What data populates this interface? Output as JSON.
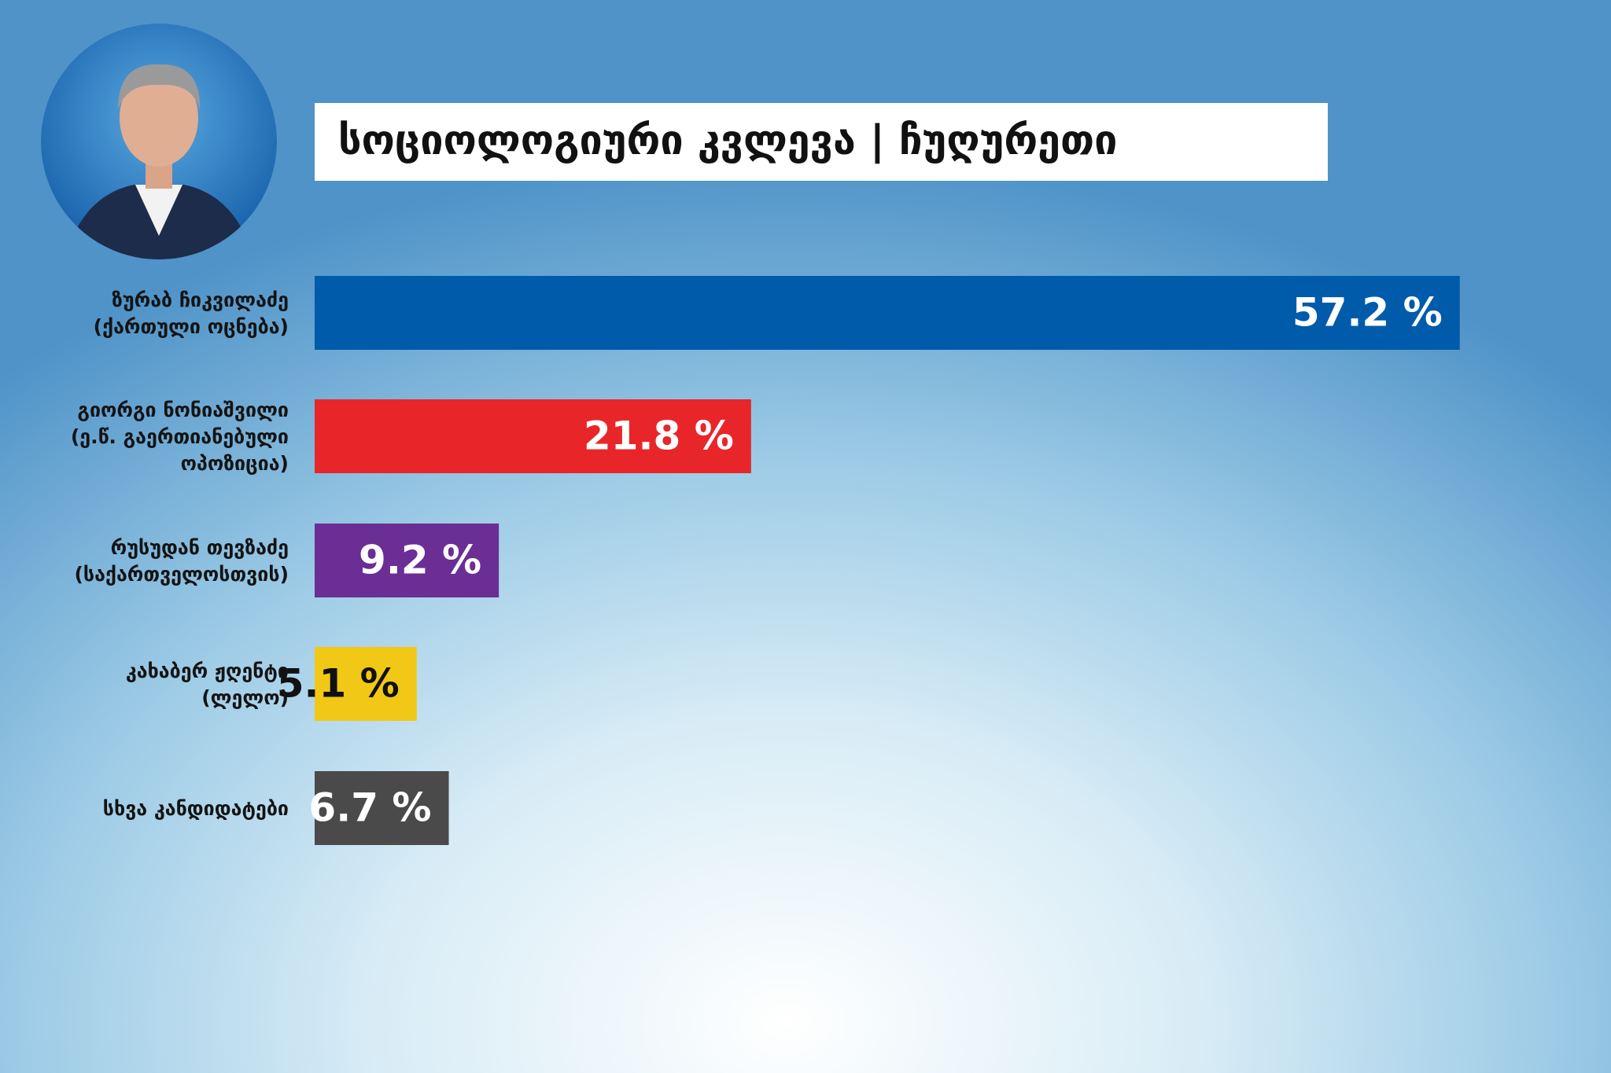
{
  "chart_data": {
    "type": "hbar",
    "title": "სოციოლოგიური კვლევა | ჩუღურეთი",
    "categories": [
      [
        "ზურაბ ჩიკვილაძე",
        "(ქართული ოცნება)"
      ],
      [
        "გიორგი ნონიაშვილი",
        "(ე.წ. გაერთიანებული",
        "ოპოზიცია)"
      ],
      [
        "რუსუდან თევზაძე",
        "(საქართველოსთვის)"
      ],
      [
        "კახაბერ ჟღენტი",
        "(ლელო)"
      ],
      [
        "სხვა კანდიდატები"
      ]
    ],
    "values": [
      57.2,
      21.8,
      9.2,
      5.1,
      6.7
    ],
    "value_labels": [
      "57.2 %",
      "21.8 %",
      "9.2 %",
      "5.1 %",
      "6.7 %"
    ],
    "colors": [
      "#005baa",
      "#e8262a",
      "#6a2e94",
      "#f2c816",
      "#4a4a4a"
    ],
    "value_label_colors": [
      "#ffffff",
      "#ffffff",
      "#ffffff",
      "#111111",
      "#ffffff"
    ]
  }
}
